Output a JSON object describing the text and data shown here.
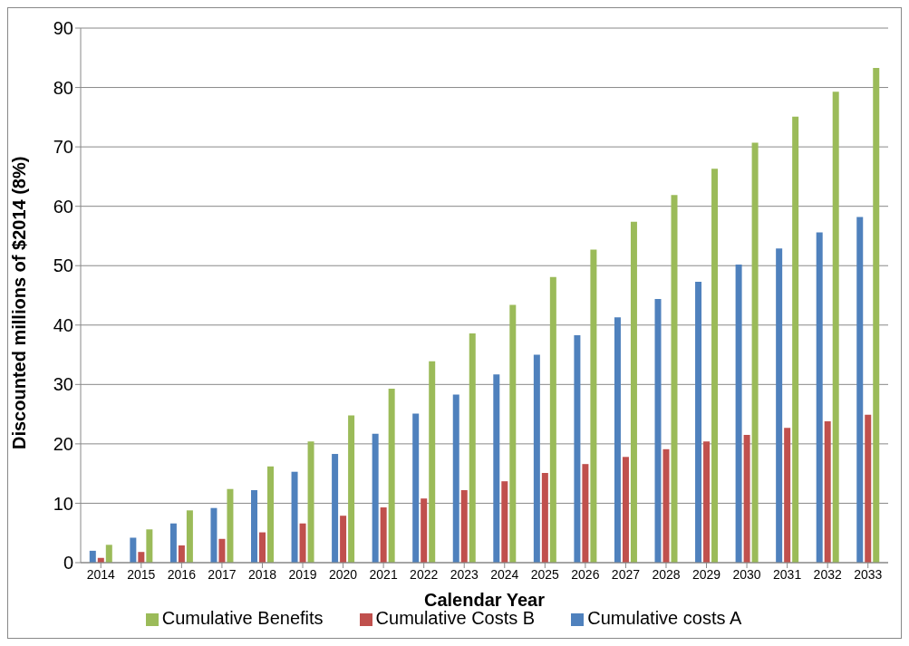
{
  "chart_data": {
    "type": "bar",
    "xlabel": "Calendar Year",
    "ylabel": "Discounted millions of $2014 (8%)",
    "categories": [
      "2014",
      "2015",
      "2016",
      "2017",
      "2018",
      "2019",
      "2020",
      "2021",
      "2022",
      "2023",
      "2024",
      "2025",
      "2026",
      "2027",
      "2028",
      "2029",
      "2030",
      "2031",
      "2032",
      "2033"
    ],
    "series": [
      {
        "name": "Cumulative costs A",
        "color": "#4f81bd",
        "values": [
          2.0,
          4.2,
          6.6,
          9.2,
          12.2,
          15.3,
          18.3,
          21.7,
          25.1,
          28.3,
          31.7,
          35.0,
          38.3,
          41.3,
          44.4,
          47.3,
          50.2,
          52.9,
          55.6,
          58.2
        ]
      },
      {
        "name": "Cumulative Costs B",
        "color": "#c0504d",
        "values": [
          0.8,
          1.8,
          2.9,
          4.0,
          5.1,
          6.6,
          7.9,
          9.3,
          10.8,
          12.2,
          13.7,
          15.1,
          16.6,
          17.8,
          19.1,
          20.4,
          21.5,
          22.7,
          23.8,
          24.9
        ]
      },
      {
        "name": "Cumulative Benefits",
        "color": "#9bbb59",
        "values": [
          3.0,
          5.6,
          8.8,
          12.4,
          16.2,
          20.4,
          24.8,
          29.3,
          33.9,
          38.6,
          43.4,
          48.1,
          52.7,
          57.4,
          61.9,
          66.3,
          70.7,
          75.1,
          79.3,
          83.3
        ]
      }
    ],
    "ylim": [
      0,
      90
    ],
    "yticks": [
      0,
      10,
      20,
      30,
      40,
      50,
      60,
      70,
      80,
      90
    ],
    "grid": "y",
    "legend": "bottom"
  }
}
